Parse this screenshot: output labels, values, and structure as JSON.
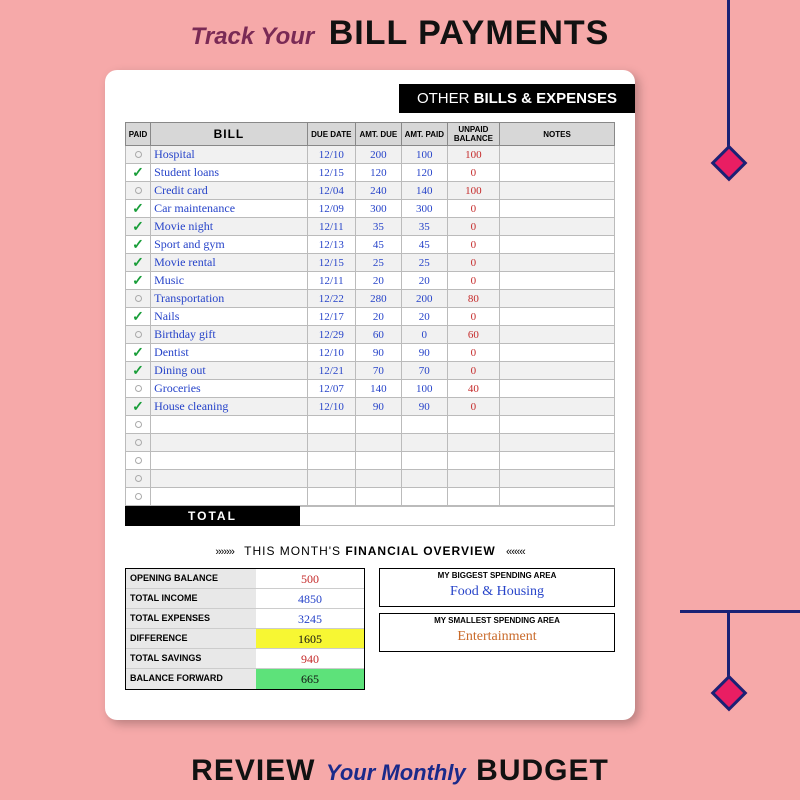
{
  "titles": {
    "top_italic": "Track Your",
    "top_bold": "BILL PAYMENTS",
    "bottom_bold1": "REVIEW",
    "bottom_italic": "Your Monthly",
    "bottom_bold2": "BUDGET",
    "header_pre": "OTHER",
    "header_bold": "BILLS & EXPENSES",
    "total_label": "TOTAL",
    "overview_pre": "THIS MONTH'S",
    "overview_bold": "FINANCIAL OVERVIEW"
  },
  "columns": {
    "paid": "PAID",
    "bill": "BILL",
    "due": "DUE DATE",
    "amtdue": "AMT. DUE",
    "amtpaid": "AMT. PAID",
    "balance": "UNPAID BALANCE",
    "notes": "NOTES"
  },
  "bills": [
    {
      "paid": false,
      "name": "Hospital",
      "due": "12/10",
      "amtdue": "200",
      "amtpaid": "100",
      "bal": "100"
    },
    {
      "paid": true,
      "name": "Student loans",
      "due": "12/15",
      "amtdue": "120",
      "amtpaid": "120",
      "bal": "0"
    },
    {
      "paid": false,
      "name": "Credit card",
      "due": "12/04",
      "amtdue": "240",
      "amtpaid": "140",
      "bal": "100"
    },
    {
      "paid": true,
      "name": "Car maintenance",
      "due": "12/09",
      "amtdue": "300",
      "amtpaid": "300",
      "bal": "0"
    },
    {
      "paid": true,
      "name": "Movie night",
      "due": "12/11",
      "amtdue": "35",
      "amtpaid": "35",
      "bal": "0"
    },
    {
      "paid": true,
      "name": "Sport and gym",
      "due": "12/13",
      "amtdue": "45",
      "amtpaid": "45",
      "bal": "0"
    },
    {
      "paid": true,
      "name": "Movie rental",
      "due": "12/15",
      "amtdue": "25",
      "amtpaid": "25",
      "bal": "0"
    },
    {
      "paid": true,
      "name": "Music",
      "due": "12/11",
      "amtdue": "20",
      "amtpaid": "20",
      "bal": "0"
    },
    {
      "paid": false,
      "name": "Transportation",
      "due": "12/22",
      "amtdue": "280",
      "amtpaid": "200",
      "bal": "80"
    },
    {
      "paid": true,
      "name": "Nails",
      "due": "12/17",
      "amtdue": "20",
      "amtpaid": "20",
      "bal": "0"
    },
    {
      "paid": false,
      "name": "Birthday gift",
      "due": "12/29",
      "amtdue": "60",
      "amtpaid": "0",
      "bal": "60"
    },
    {
      "paid": true,
      "name": "Dentist",
      "due": "12/10",
      "amtdue": "90",
      "amtpaid": "90",
      "bal": "0"
    },
    {
      "paid": true,
      "name": "Dining out",
      "due": "12/21",
      "amtdue": "70",
      "amtpaid": "70",
      "bal": "0"
    },
    {
      "paid": false,
      "name": "Groceries",
      "due": "12/07",
      "amtdue": "140",
      "amtpaid": "100",
      "bal": "40"
    },
    {
      "paid": true,
      "name": "House cleaning",
      "due": "12/10",
      "amtdue": "90",
      "amtpaid": "90",
      "bal": "0"
    }
  ],
  "blank_rows": 5,
  "overview": {
    "rows": [
      {
        "label": "OPENING BALANCE",
        "value": "500",
        "color": "#c52a2a",
        "bg": ""
      },
      {
        "label": "TOTAL INCOME",
        "value": "4850",
        "color": "#2643c9",
        "bg": ""
      },
      {
        "label": "TOTAL EXPENSES",
        "value": "3245",
        "color": "#2643c9",
        "bg": ""
      },
      {
        "label": "DIFFERENCE",
        "value": "1605",
        "color": "#111",
        "bg": "#f7f733"
      },
      {
        "label": "TOTAL SAVINGS",
        "value": "940",
        "color": "#c52a2a",
        "bg": ""
      },
      {
        "label": "BALANCE FORWARD",
        "value": "665",
        "color": "#111",
        "bg": "#5de27a"
      }
    ],
    "biggest_label": "MY BIGGEST",
    "smallest_label": "MY SMALLEST",
    "spend_suffix": "SPENDING AREA",
    "biggest_value": "Food & Housing",
    "biggest_color": "#2643c9",
    "smallest_value": "Entertainment",
    "smallest_color": "#c96a2a"
  },
  "colors": {
    "page_bg": "#f6a9a9",
    "sheet_bg": "#ffffff",
    "deco_line": "#1a2275",
    "deco_fill": "#e91e63",
    "ink_blue": "#2643c9",
    "ink_red": "#c52a2a",
    "check_green": "#1a9e3a"
  }
}
